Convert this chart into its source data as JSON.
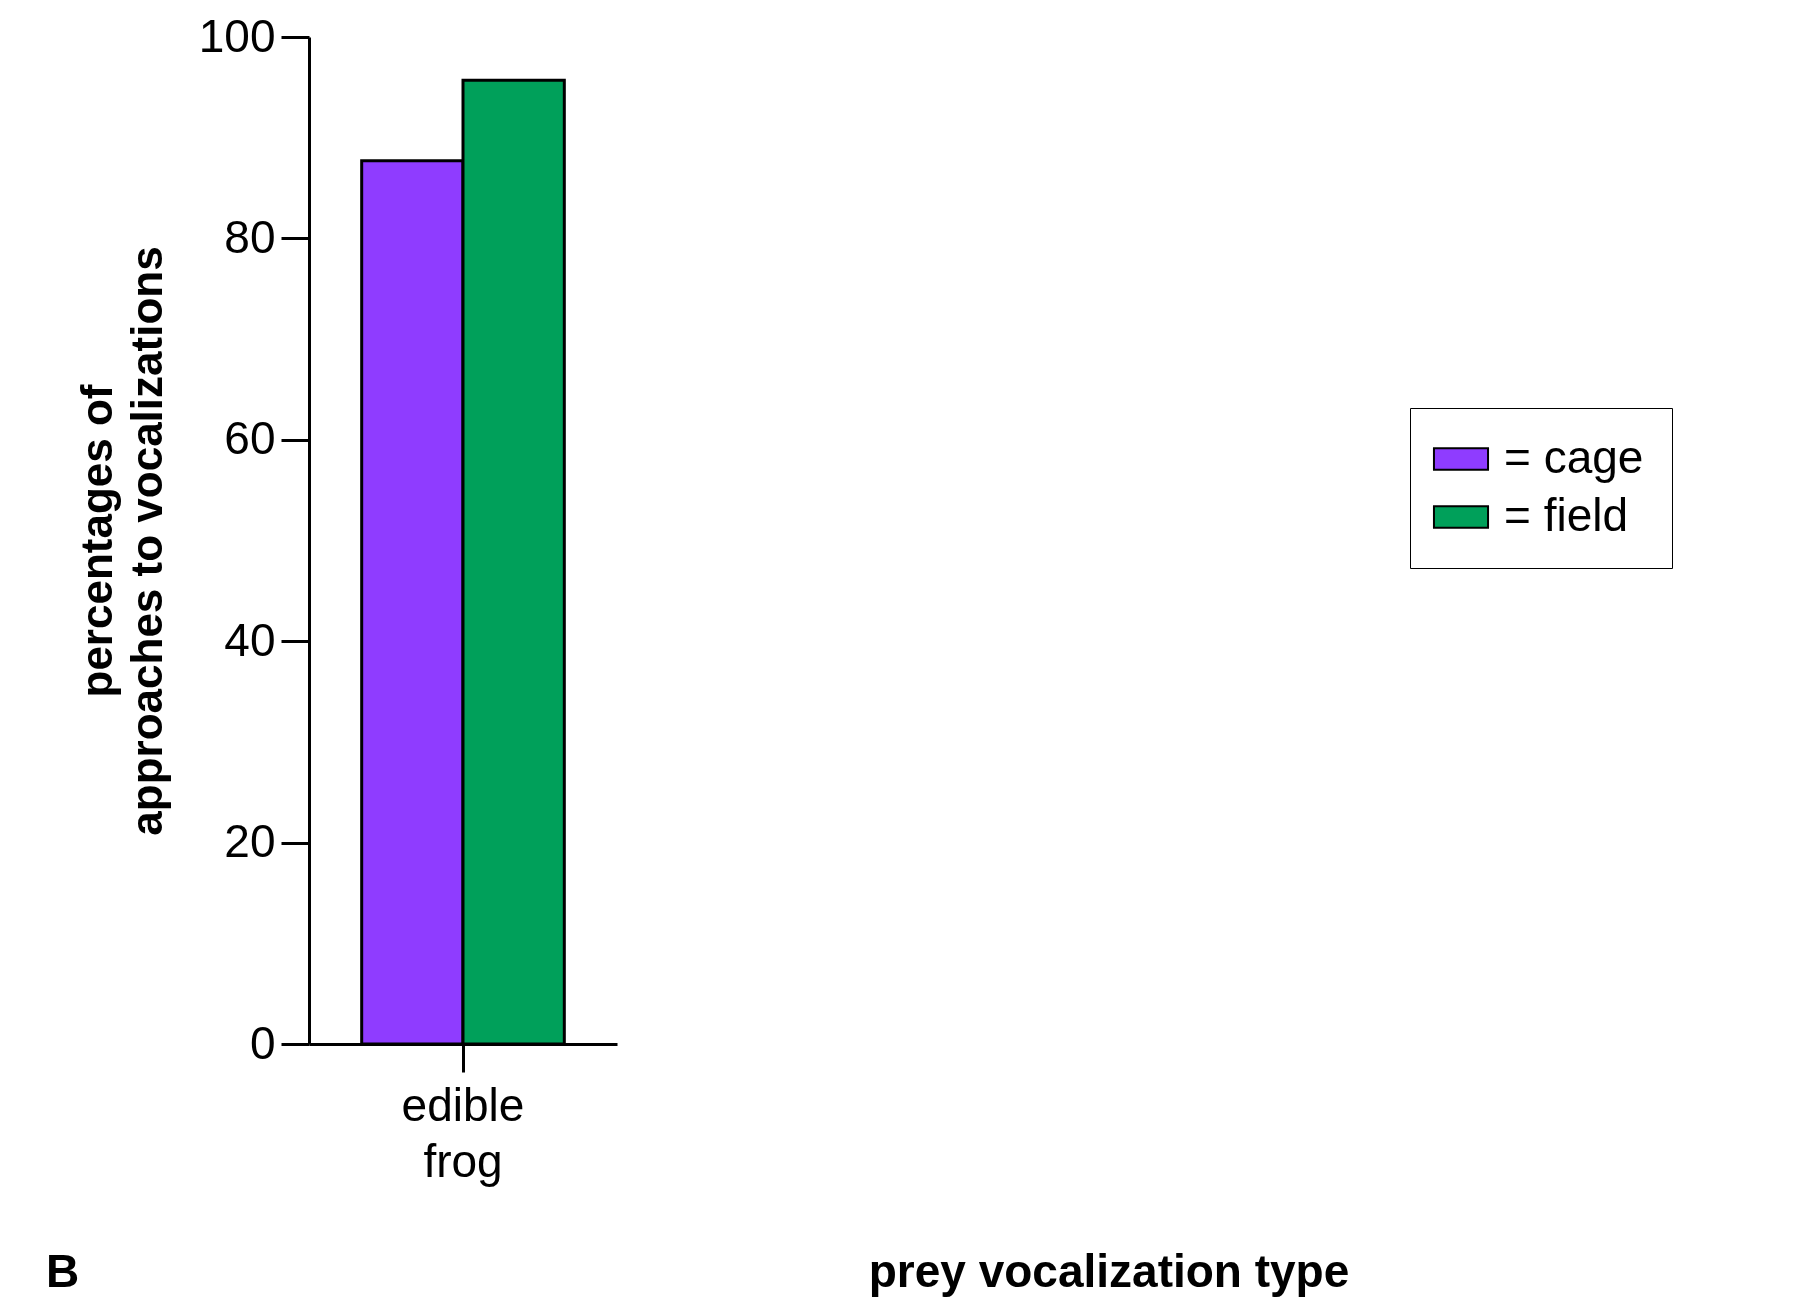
{
  "chart_data": {
    "type": "bar",
    "categories": [
      "edible frog"
    ],
    "series": [
      {
        "name": "= cage",
        "color": "#8f3cff",
        "values": [
          87.7
        ]
      },
      {
        "name": "= field",
        "color": "#00a05a",
        "values": [
          95.7
        ]
      }
    ],
    "ylim": [
      0,
      100
    ],
    "yticks": [
      0,
      20,
      40,
      60,
      80,
      100
    ],
    "ylabel": "percentages of\napproaches to vocalizations",
    "annotations": [
      "B",
      "prey vocalization type"
    ],
    "grid": false,
    "legend": "right"
  }
}
